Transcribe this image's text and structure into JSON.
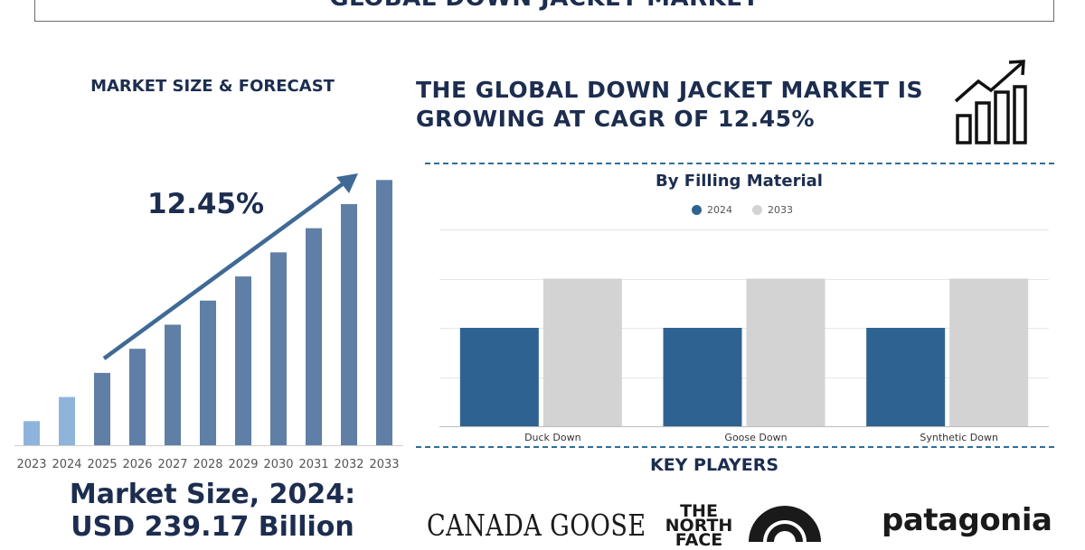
{
  "header": {
    "title": "GLOBAL DOWN JACKET MARKET"
  },
  "left_panel": {
    "subtitle": "MARKET SIZE & FORECAST",
    "cagr_label": "12.45%",
    "market_size_line1": "Market Size, 2024:",
    "market_size_line2": "USD 239.17 Billion"
  },
  "right_panel": {
    "headline_line1": "THE GLOBAL DOWN JACKET MARKET IS",
    "headline_line2": "GROWING AT CAGR OF 12.45%",
    "growth_icon": "bar-chart-growth-icon"
  },
  "key_players": {
    "title": "KEY PLAYERS",
    "logos": [
      "CANADA GOOSE",
      "THE NORTH FACE",
      "patagonia"
    ]
  },
  "colors": {
    "navy": "#1c2d4f",
    "bar_blue": "#5f7fa6",
    "bar_light": "#8fb4dc",
    "series_2024": "#2e6391",
    "series_2033": "#d3d3d3",
    "dash": "#2f6e99"
  },
  "chart_data": [
    {
      "type": "bar",
      "title": "",
      "categories": [
        "2023",
        "2024",
        "2025",
        "2026",
        "2027",
        "2028",
        "2029",
        "2030",
        "2031",
        "2032",
        "2033"
      ],
      "values": [
        1,
        2,
        3,
        4,
        5,
        6,
        7,
        8,
        9,
        10,
        11
      ],
      "note_values_unlabeled": true,
      "xlabel": "",
      "ylabel": "",
      "trend_arrow": true
    },
    {
      "type": "bar",
      "title": "By Filling Material",
      "categories": [
        "Duck Down",
        "Goose Down",
        "Synthetic Down"
      ],
      "series": [
        {
          "name": "2024",
          "values": [
            2,
            2,
            2
          ]
        },
        {
          "name": "2033",
          "values": [
            3,
            3,
            3
          ]
        }
      ],
      "ylim": [
        0,
        4
      ],
      "grid": true,
      "legend": "top-center"
    }
  ]
}
